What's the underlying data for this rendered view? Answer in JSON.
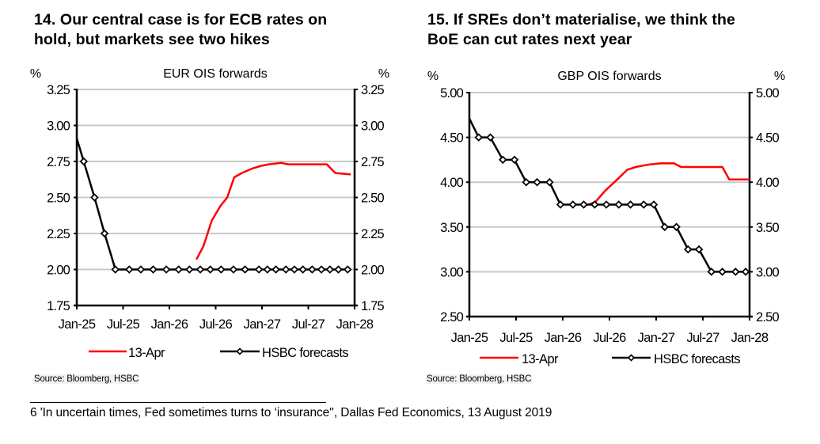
{
  "footnote": "6 'In uncertain times, Fed sometimes turns to ‘insurance'', Dallas Fed Economics, 13 August 2019",
  "chart_data": [
    {
      "id": "eur",
      "type": "line",
      "title": "14. Our central case is for ECB rates on hold, but markets see two hikes",
      "title_lines": [
        "14. Our central case is for ECB rates on",
        "hold, but markets see two hikes"
      ],
      "subtitle": "EUR OIS forwards",
      "ylabel_left": "%",
      "ylabel_right": "%",
      "ylim": [
        1.75,
        3.25
      ],
      "yticks": [
        1.75,
        2.0,
        2.25,
        2.5,
        2.75,
        3.0,
        3.25
      ],
      "ytick_labels": [
        "1.75",
        "2.00",
        "2.25",
        "2.50",
        "2.75",
        "3.00",
        "3.25"
      ],
      "x_unit": "months since Jan-25",
      "xlim": [
        0,
        36
      ],
      "xticks": [
        0,
        6,
        12,
        18,
        24,
        30,
        36
      ],
      "xtick_labels": [
        "Jan-25",
        "Jul-25",
        "Jan-26",
        "Jul-26",
        "Jan-27",
        "Jul-27",
        "Jan-28"
      ],
      "grid": true,
      "legend_position": "bottom",
      "source": "Source: Bloomberg, HSBC",
      "series": [
        {
          "name": "13-Apr",
          "color": "#ff0000",
          "markers": false,
          "x": [
            15.5,
            16.4,
            17.5,
            18.6,
            19.5,
            20.4,
            21.4,
            22.7,
            23.9,
            24.9,
            26.5,
            27.4,
            32.4,
            33.5,
            35.5
          ],
          "y": [
            2.07,
            2.16,
            2.34,
            2.44,
            2.5,
            2.64,
            2.67,
            2.7,
            2.72,
            2.73,
            2.74,
            2.73,
            2.73,
            2.67,
            2.66
          ]
        },
        {
          "name": "HSBC forecasts",
          "color": "#000000",
          "markers": true,
          "start": {
            "x": 0,
            "y": 2.91
          },
          "x": [
            0.9,
            2.3,
            3.6,
            5.0,
            6.8,
            8.3,
            9.9,
            11.6,
            13.2,
            14.6,
            16.0,
            17.3,
            18.7,
            20.3,
            21.8,
            23.6,
            24.7,
            25.8,
            27.1,
            28.2,
            29.3,
            30.5,
            31.7,
            32.8,
            33.9,
            35.1
          ],
          "y": [
            2.75,
            2.5,
            2.25,
            2.0,
            2.0,
            2.0,
            2.0,
            2.0,
            2.0,
            2.0,
            2.0,
            2.0,
            2.0,
            2.0,
            2.0,
            2.0,
            2.0,
            2.0,
            2.0,
            2.0,
            2.0,
            2.0,
            2.0,
            2.0,
            2.0,
            2.0
          ]
        }
      ]
    },
    {
      "id": "gbp",
      "type": "line",
      "title": "15. If SREs don’t materialise, we think the BoE can cut rates next year",
      "title_lines": [
        "15. If SREs don’t materialise, we think the",
        "BoE can cut rates next year"
      ],
      "subtitle": "GBP OIS forwards",
      "ylabel_left": "%",
      "ylabel_right": "%",
      "ylim": [
        2.5,
        5.0
      ],
      "yticks": [
        2.5,
        3.0,
        3.5,
        4.0,
        4.5,
        5.0
      ],
      "ytick_labels": [
        "2.50",
        "3.00",
        "3.50",
        "4.00",
        "4.50",
        "5.00"
      ],
      "x_unit": "months since Jan-25",
      "xlim": [
        0,
        36
      ],
      "xticks": [
        0,
        6,
        12,
        18,
        24,
        30,
        36
      ],
      "xtick_labels": [
        "Jan-25",
        "Jul-25",
        "Jan-26",
        "Jul-26",
        "Jan-27",
        "Jul-27",
        "Jan-28"
      ],
      "grid": true,
      "legend_position": "bottom",
      "source": "Source: Bloomberg, HSBC",
      "series": [
        {
          "name": "13-Apr",
          "color": "#ff0000",
          "markers": false,
          "x": [
            15.3,
            16.2,
            17.5,
            19.0,
            20.3,
            21.4,
            22.6,
            23.3,
            24.6,
            26.3,
            27.2,
            32.5,
            33.4,
            36.0
          ],
          "y": [
            3.75,
            3.78,
            3.91,
            4.03,
            4.14,
            4.17,
            4.19,
            4.2,
            4.21,
            4.21,
            4.17,
            4.17,
            4.03,
            4.03
          ]
        },
        {
          "name": "HSBC forecasts",
          "color": "#000000",
          "markers": true,
          "start": {
            "x": 0,
            "y": 4.71
          },
          "x": [
            1.2,
            2.7,
            4.3,
            5.8,
            7.3,
            8.7,
            10.3,
            11.7,
            13.3,
            14.7,
            16.1,
            17.6,
            19.2,
            20.7,
            22.4,
            23.7,
            25.1,
            26.6,
            28.1,
            29.5,
            31.1,
            32.5,
            34.2,
            35.5
          ],
          "y": [
            4.5,
            4.5,
            4.25,
            4.25,
            4.0,
            4.0,
            4.0,
            3.75,
            3.75,
            3.75,
            3.75,
            3.75,
            3.75,
            3.75,
            3.75,
            3.75,
            3.5,
            3.5,
            3.25,
            3.25,
            3.0,
            3.0,
            3.0,
            3.0
          ]
        }
      ]
    }
  ]
}
